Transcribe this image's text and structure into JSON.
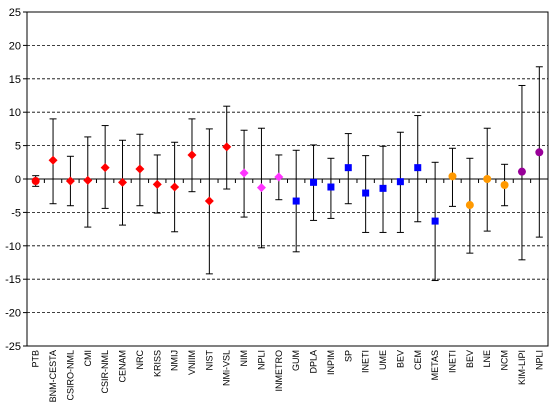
{
  "chart_data": {
    "type": "scatter",
    "title": "",
    "xlabel": "",
    "ylabel": "",
    "ylim": [
      -25,
      25
    ],
    "y_ticks": [
      25,
      20,
      15,
      10,
      5,
      0,
      -5,
      -10,
      -15,
      -20,
      -25
    ],
    "grid": "horizontal-dashed",
    "legend": "none",
    "zero_line": true,
    "categories": [
      "PTB",
      "BNM-CESTA",
      "CSIRO-NML",
      "CMI",
      "CSIR-NML",
      "CENAM",
      "NRC",
      "KRISS",
      "NMIJ",
      "VNIIM",
      "NIST",
      "NMi-VSL",
      "NIM",
      "NPLI",
      "INMETRO",
      "GUM",
      "DPLA",
      "INPIM",
      "SP",
      "INETI",
      "UME",
      "BEV",
      "CEM",
      "METAS",
      "INETI",
      "BEV",
      "LNE",
      "NCM",
      "KIM-LIPI",
      "NPLI"
    ],
    "points": [
      {
        "label": "PTB",
        "y": -0.3,
        "err_low": -1.1,
        "err_high": 0.5,
        "marker": "circle",
        "color": "#ff0000"
      },
      {
        "label": "BNM-CESTA",
        "y": 2.8,
        "err_low": -3.7,
        "err_high": 9.0,
        "marker": "diamond",
        "color": "#ff0000"
      },
      {
        "label": "CSIRO-NML",
        "y": -0.3,
        "err_low": -4.0,
        "err_high": 3.4,
        "marker": "diamond",
        "color": "#ff0000"
      },
      {
        "label": "CMI",
        "y": -0.2,
        "err_low": -7.2,
        "err_high": 6.3,
        "marker": "diamond",
        "color": "#ff0000"
      },
      {
        "label": "CSIR-NML",
        "y": 1.7,
        "err_low": -4.4,
        "err_high": 8.0,
        "marker": "diamond",
        "color": "#ff0000"
      },
      {
        "label": "CENAM",
        "y": -0.5,
        "err_low": -6.9,
        "err_high": 5.8,
        "marker": "diamond",
        "color": "#ff0000"
      },
      {
        "label": "NRC",
        "y": 1.5,
        "err_low": -4.0,
        "err_high": 6.7,
        "marker": "diamond",
        "color": "#ff0000"
      },
      {
        "label": "KRISS",
        "y": -0.8,
        "err_low": -5.1,
        "err_high": 3.6,
        "marker": "diamond",
        "color": "#ff0000"
      },
      {
        "label": "NMIJ",
        "y": -1.2,
        "err_low": -7.9,
        "err_high": 5.5,
        "marker": "diamond",
        "color": "#ff0000"
      },
      {
        "label": "VNIIM",
        "y": 3.6,
        "err_low": -1.9,
        "err_high": 9.0,
        "marker": "diamond",
        "color": "#ff0000"
      },
      {
        "label": "NIST",
        "y": -3.3,
        "err_low": -14.2,
        "err_high": 7.5,
        "marker": "diamond",
        "color": "#ff0000"
      },
      {
        "label": "NMi-VSL",
        "y": 4.8,
        "err_low": -1.5,
        "err_high": 10.9,
        "marker": "diamond",
        "color": "#ff0000"
      },
      {
        "label": "NIM",
        "y": 0.9,
        "err_low": -5.7,
        "err_high": 7.3,
        "marker": "diamond",
        "color": "#ff33ff"
      },
      {
        "label": "NPLI",
        "y": -1.3,
        "err_low": -10.3,
        "err_high": 7.6,
        "marker": "diamond",
        "color": "#ff33ff"
      },
      {
        "label": "INMETRO",
        "y": 0.3,
        "err_low": -3.1,
        "err_high": 3.6,
        "marker": "diamond",
        "color": "#ff33ff"
      },
      {
        "label": "GUM",
        "y": -3.3,
        "err_low": -10.9,
        "err_high": 4.3,
        "marker": "square",
        "color": "#0000ff"
      },
      {
        "label": "DPLA",
        "y": -0.5,
        "err_low": -6.2,
        "err_high": 5.1,
        "marker": "square",
        "color": "#0000ff"
      },
      {
        "label": "INPIM",
        "y": -1.2,
        "err_low": -5.9,
        "err_high": 3.1,
        "marker": "square",
        "color": "#0000ff"
      },
      {
        "label": "SP",
        "y": 1.7,
        "err_low": -3.7,
        "err_high": 6.8,
        "marker": "square",
        "color": "#0000ff"
      },
      {
        "label": "INETI",
        "y": -2.1,
        "err_low": -8.0,
        "err_high": 3.5,
        "marker": "square",
        "color": "#0000ff"
      },
      {
        "label": "UME",
        "y": -1.4,
        "err_low": -8.0,
        "err_high": 4.9,
        "marker": "square",
        "color": "#0000ff"
      },
      {
        "label": "BEV",
        "y": -0.4,
        "err_low": -8.0,
        "err_high": 7.0,
        "marker": "square",
        "color": "#0000ff"
      },
      {
        "label": "CEM",
        "y": 1.7,
        "err_low": -6.4,
        "err_high": 9.5,
        "marker": "square",
        "color": "#0000ff"
      },
      {
        "label": "METAS",
        "y": -6.3,
        "err_low": -15.2,
        "err_high": 2.5,
        "marker": "square",
        "color": "#0000ff"
      },
      {
        "label": "INETI",
        "y": 0.4,
        "err_low": -4.1,
        "err_high": 4.6,
        "marker": "circle",
        "color": "#ff9900"
      },
      {
        "label": "BEV",
        "y": -3.9,
        "err_low": -11.1,
        "err_high": 3.1,
        "marker": "circle",
        "color": "#ff9900"
      },
      {
        "label": "LNE",
        "y": 0.0,
        "err_low": -7.8,
        "err_high": 7.6,
        "marker": "circle",
        "color": "#ff9900"
      },
      {
        "label": "NCM",
        "y": -0.9,
        "err_low": -4.0,
        "err_high": 2.2,
        "marker": "circle",
        "color": "#ff9900"
      },
      {
        "label": "KIM-LIPI",
        "y": 1.1,
        "err_low": -12.1,
        "err_high": 14.0,
        "marker": "circle",
        "color": "#990099"
      },
      {
        "label": "NPLI",
        "y": 4.0,
        "err_low": -8.7,
        "err_high": 16.8,
        "marker": "circle",
        "color": "#990099"
      }
    ]
  }
}
